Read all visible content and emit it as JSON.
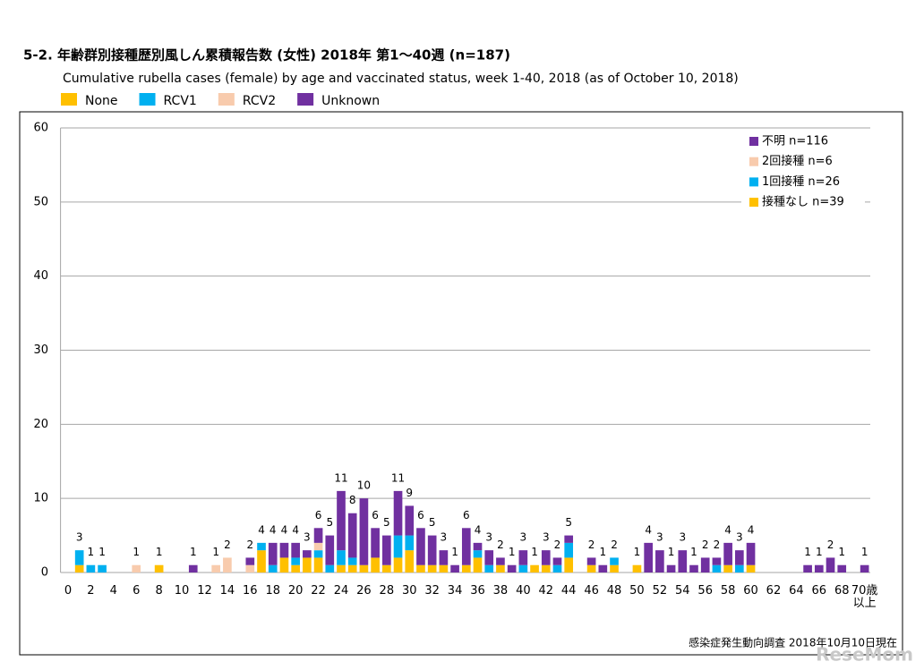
{
  "chart_data": {
    "type": "stacked-bar",
    "title": "5-2. 年齢群別接種歴別風しん累積報告数 (女性)  2018年 第1～40週 (n=187)",
    "subtitle": "Cumulative rubella cases (female) by age and vaccinated status, week 1-40, 2018 (as of October 10, 2018)",
    "categories": [
      "0",
      null,
      "2",
      null,
      "4",
      null,
      "6",
      null,
      "8",
      null,
      "10",
      null,
      "12",
      null,
      "14",
      null,
      "16",
      null,
      "18",
      null,
      "20",
      null,
      "22",
      null,
      "24",
      null,
      "26",
      null,
      "28",
      null,
      "30",
      null,
      "32",
      null,
      "34",
      null,
      "36",
      null,
      "38",
      null,
      "40",
      null,
      "42",
      null,
      "44",
      null,
      "46",
      null,
      "48",
      null,
      "50",
      null,
      "52",
      null,
      "54",
      null,
      "56",
      null,
      "58",
      null,
      "60",
      null,
      "62",
      null,
      "64",
      null,
      "66",
      null,
      "68",
      null,
      "70歳\n以上"
    ],
    "series": [
      {
        "name": "None",
        "color": "#ffc000",
        "values": [
          0,
          1,
          0,
          0,
          0,
          0,
          0,
          0,
          1,
          0,
          0,
          0,
          0,
          0,
          0,
          0,
          0,
          3,
          0,
          2,
          1,
          2,
          2,
          0,
          1,
          1,
          1,
          2,
          1,
          2,
          3,
          1,
          1,
          1,
          0,
          1,
          2,
          0,
          1,
          0,
          0,
          1,
          1,
          0,
          2,
          0,
          1,
          0,
          1,
          0,
          1,
          0,
          0,
          0,
          0,
          0,
          0,
          0,
          1,
          0,
          1,
          0,
          0,
          0,
          0,
          0,
          0,
          0,
          0,
          0,
          0
        ]
      },
      {
        "name": "RCV1",
        "color": "#00b0f0",
        "values": [
          0,
          2,
          1,
          1,
          0,
          0,
          0,
          0,
          0,
          0,
          0,
          0,
          0,
          0,
          0,
          0,
          0,
          1,
          1,
          0,
          1,
          0,
          1,
          1,
          2,
          1,
          0,
          0,
          0,
          3,
          2,
          0,
          0,
          0,
          0,
          0,
          1,
          1,
          0,
          0,
          1,
          0,
          0,
          1,
          2,
          0,
          0,
          0,
          1,
          0,
          0,
          0,
          0,
          0,
          0,
          0,
          0,
          1,
          0,
          1,
          0,
          0,
          0,
          0,
          0,
          0,
          0,
          0,
          0,
          0,
          0
        ]
      },
      {
        "name": "RCV2",
        "color": "#f8cbad",
        "values": [
          0,
          0,
          0,
          0,
          0,
          0,
          1,
          0,
          0,
          0,
          0,
          0,
          0,
          1,
          2,
          0,
          1,
          0,
          0,
          0,
          0,
          0,
          1,
          0,
          0,
          0,
          0,
          0,
          0,
          0,
          0,
          0,
          0,
          0,
          0,
          0,
          0,
          0,
          0,
          0,
          0,
          0,
          0,
          0,
          0,
          0,
          0,
          0,
          0,
          0,
          0,
          0,
          0,
          0,
          0,
          0,
          0,
          0,
          0,
          0,
          0,
          0,
          0,
          0,
          0,
          0,
          0,
          0,
          0,
          0,
          0
        ]
      },
      {
        "name": "Unknown",
        "color": "#7030a0",
        "values": [
          0,
          0,
          0,
          0,
          0,
          0,
          0,
          0,
          0,
          0,
          0,
          1,
          0,
          0,
          0,
          0,
          1,
          0,
          3,
          2,
          2,
          1,
          2,
          4,
          8,
          6,
          9,
          4,
          4,
          6,
          4,
          5,
          4,
          2,
          1,
          5,
          1,
          2,
          1,
          1,
          2,
          0,
          2,
          1,
          1,
          0,
          1,
          1,
          0,
          0,
          0,
          4,
          3,
          1,
          3,
          1,
          2,
          1,
          3,
          2,
          3,
          0,
          0,
          0,
          0,
          1,
          1,
          2,
          1,
          0,
          1
        ]
      }
    ],
    "totals": [
      null,
      3,
      1,
      1,
      null,
      null,
      1,
      null,
      1,
      null,
      null,
      1,
      null,
      1,
      2,
      null,
      2,
      4,
      4,
      4,
      4,
      3,
      6,
      5,
      11,
      8,
      10,
      6,
      5,
      11,
      9,
      6,
      5,
      3,
      1,
      6,
      4,
      3,
      2,
      1,
      3,
      1,
      3,
      2,
      5,
      null,
      2,
      1,
      2,
      null,
      1,
      4,
      3,
      1,
      3,
      1,
      2,
      2,
      4,
      3,
      4,
      null,
      null,
      null,
      null,
      1,
      1,
      2,
      1,
      null,
      1
    ],
    "inner_legend": [
      "不明 n=116",
      "2回接種 n=6",
      "1回接種 n=26",
      "接種なし n=39"
    ],
    "ylim": [
      0,
      60
    ],
    "yticks": [
      0,
      10,
      20,
      30,
      40,
      50,
      60
    ],
    "grid": true,
    "source": "感染症発生動向調査 2018年10月10日現在",
    "watermark": "ReseMom"
  }
}
